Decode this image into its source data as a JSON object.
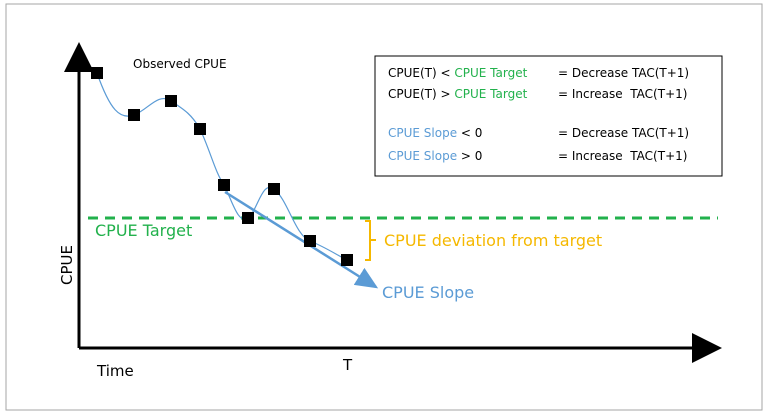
{
  "observed_label": "Observed CPUE",
  "y_axis_label": "CPUE",
  "x_axis_start_label": "Time",
  "x_axis_end_label": "T",
  "target_label": "CPUE Target",
  "deviation_label": "CPUE deviation from target",
  "slope_label": "CPUE Slope",
  "rules": [
    {
      "subject": "CPUE(T) <",
      "term": "CPUE Target",
      "result": "= Decrease TAC(T+1)"
    },
    {
      "subject": "CPUE(T) >",
      "term": "CPUE Target",
      "result": "= Increase  TAC(T+1)"
    },
    {
      "term": "CPUE Slope",
      "condition": "< 0",
      "result": "= Decrease TAC(T+1)"
    },
    {
      "term": "CPUE Slope",
      "condition": "> 0",
      "result": "= Increase  TAC(T+1)"
    }
  ]
}
